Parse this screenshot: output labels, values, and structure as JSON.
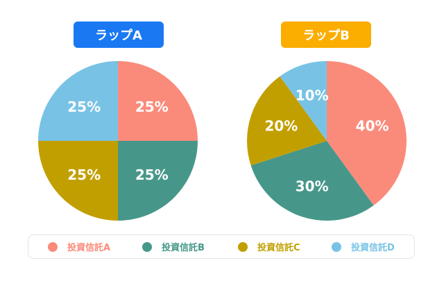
{
  "chart_data": [
    {
      "type": "pie",
      "title": "ラップA",
      "categories": [
        "投資信託A",
        "投資信託B",
        "投資信託C",
        "投資信託D"
      ],
      "values": [
        25,
        25,
        25,
        25
      ],
      "labels": [
        "25%",
        "25%",
        "25%",
        "25%"
      ]
    },
    {
      "type": "pie",
      "title": "ラップB",
      "categories": [
        "投資信託A",
        "投資信託B",
        "投資信託C",
        "投資信託D"
      ],
      "values": [
        40,
        30,
        20,
        10
      ],
      "labels": [
        "40%",
        "30%",
        "20%",
        "10%"
      ]
    }
  ],
  "colors": {
    "series": [
      "#fa8b7b",
      "#46978a",
      "#c29f00",
      "#78c3e5"
    ],
    "badge_a": "#1a78f2",
    "badge_b": "#fbad00"
  },
  "legend": {
    "placement": "bottom",
    "items": [
      "投資信託A",
      "投資信託B",
      "投資信託C",
      "投資信託D"
    ]
  }
}
